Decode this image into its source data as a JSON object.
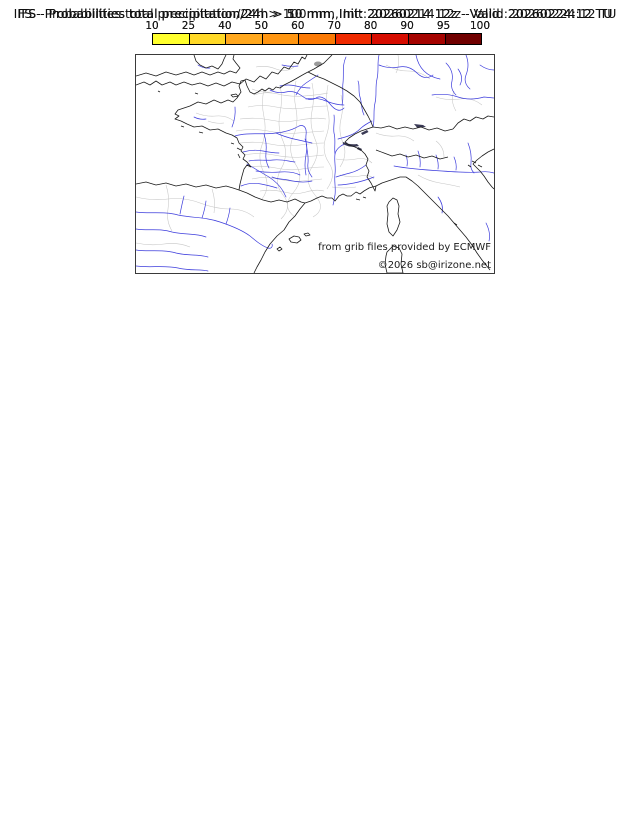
{
  "panels": [
    {
      "id": "precip-gt-10mm",
      "threshold_mm": 10,
      "title": "IFS - Probabilities total precipitation/24h > 10 mm, Init: 20260214 12z - Valid: 20260224:12 TU"
    },
    {
      "id": "precip-gt-50mm",
      "threshold_mm": 50,
      "title": "IFS - Probabilities total precipitation/24h > 50 mm, Init: 20260214 12z - Valid: 20260224:12 TU"
    },
    {
      "id": "precip-gt-100mm",
      "threshold_mm": 100,
      "title": "IFS - Probabilities total precipitation/24h > 100 mm, Init: 20260214 12z - Valid: 20260224:12 TU"
    }
  ],
  "colorbar": {
    "tick_labels": [
      "10",
      "25",
      "40",
      "50",
      "60",
      "70",
      "80",
      "90",
      "95",
      "100"
    ],
    "segment_colors": [
      "#ffff2e",
      "#ffd928",
      "#ffa81e",
      "#ff9612",
      "#fb7a05",
      "#ef2a00",
      "#d60c00",
      "#a50300",
      "#700000"
    ]
  },
  "map_credits": {
    "provider_note": "from grib files provided by ECMWF",
    "copyright": "©2026 sb@irizone.net"
  },
  "map_palette": {
    "river": "#3c3cdc",
    "coast_border": "#1a1a1a",
    "department_boundary": "#c6c6c6",
    "lake": "#3a3a55",
    "urban": "#9a9a9a",
    "overlay_yellow": "#ffe719",
    "overlay_orange_light": "#ffc22b",
    "overlay_orange": "#ff9d15",
    "overlay_orange_deep": "#ff8a08"
  }
}
